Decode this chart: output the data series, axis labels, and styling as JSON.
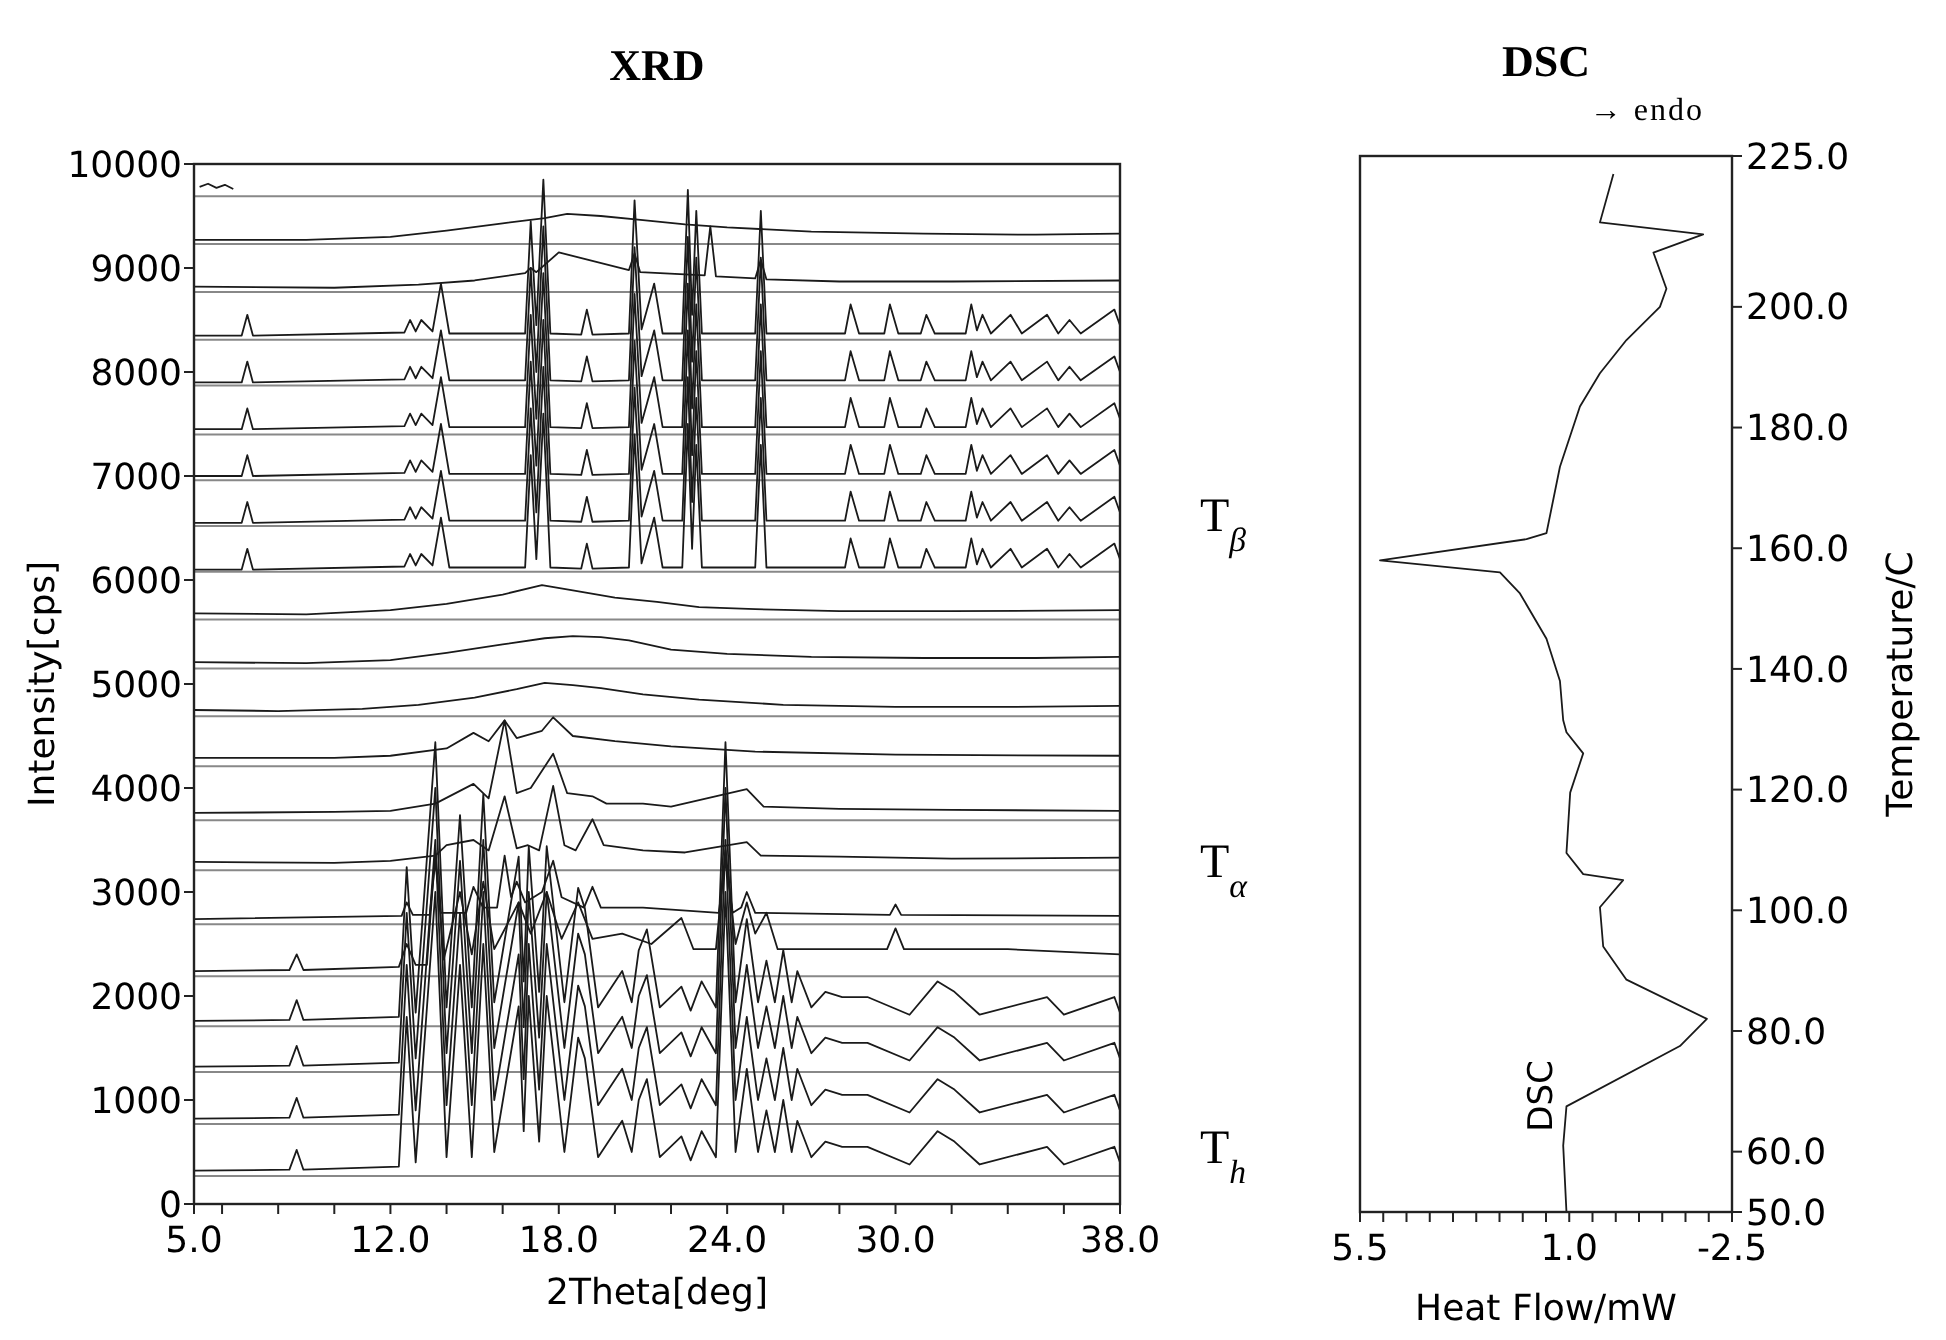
{
  "chart_data": [
    {
      "type": "line",
      "title": "XRD",
      "xlabel": "2Theta[deg]",
      "ylabel": "Intensity[cps]",
      "xlim": [
        5,
        38
      ],
      "ylim": [
        0,
        10000
      ],
      "xticks": [
        {
          "value": 5,
          "label": "5.0"
        },
        {
          "value": 6,
          "label": null
        },
        {
          "value": 8,
          "label": null
        },
        {
          "value": 10,
          "label": null
        },
        {
          "value": 12,
          "label": "12.0"
        },
        {
          "value": 14,
          "label": null
        },
        {
          "value": 16,
          "label": null
        },
        {
          "value": 18,
          "label": "18.0"
        },
        {
          "value": 20,
          "label": null
        },
        {
          "value": 22,
          "label": null
        },
        {
          "value": 24,
          "label": "24.0"
        },
        {
          "value": 26,
          "label": null
        },
        {
          "value": 28,
          "label": null
        },
        {
          "value": 30,
          "label": "30.0"
        },
        {
          "value": 32,
          "label": null
        },
        {
          "value": 34,
          "label": null
        },
        {
          "value": 36,
          "label": null
        },
        {
          "value": 38,
          "label": "38.0"
        }
      ],
      "yticks": [
        0,
        1000,
        2000,
        3000,
        4000,
        5000,
        6000,
        7000,
        8000,
        9000,
        10000
      ],
      "ref_lines": [
        {
          "axis": "y",
          "value": 270,
          "color": "#888888"
        },
        {
          "axis": "y",
          "value": 770,
          "color": "#888888"
        },
        {
          "axis": "y",
          "value": 1270,
          "color": "#888888"
        },
        {
          "axis": "y",
          "value": 1710,
          "color": "#888888"
        },
        {
          "axis": "y",
          "value": 2190,
          "color": "#888888"
        },
        {
          "axis": "y",
          "value": 2690,
          "color": "#888888"
        },
        {
          "axis": "y",
          "value": 3210,
          "color": "#888888"
        },
        {
          "axis": "y",
          "value": 3690,
          "color": "#888888"
        },
        {
          "axis": "y",
          "value": 4210,
          "color": "#888888"
        },
        {
          "axis": "y",
          "value": 4690,
          "color": "#888888"
        },
        {
          "axis": "y",
          "value": 5150,
          "color": "#888888"
        },
        {
          "axis": "y",
          "value": 5620,
          "color": "#888888"
        },
        {
          "axis": "y",
          "value": 6080,
          "color": "#888888"
        },
        {
          "axis": "y",
          "value": 6520,
          "color": "#888888"
        },
        {
          "axis": "y",
          "value": 6960,
          "color": "#888888"
        },
        {
          "axis": "y",
          "value": 7400,
          "color": "#888888"
        },
        {
          "axis": "y",
          "value": 7870,
          "color": "#888888"
        },
        {
          "axis": "y",
          "value": 8310,
          "color": "#888888"
        },
        {
          "axis": "y",
          "value": 8770,
          "color": "#888888"
        },
        {
          "axis": "y",
          "value": 9230,
          "color": "#888888"
        },
        {
          "axis": "y",
          "value": 9690,
          "color": "#888888"
        }
      ],
      "series": [
        {
          "color": "#1a1a1a",
          "x": [
            5,
            8.4,
            8.66,
            8.9,
            12.3,
            12.58,
            12.9,
            13.6,
            14.0,
            14.48,
            14.9,
            15.31,
            15.7,
            16.57,
            16.75,
            16.93,
            17.3,
            17.57,
            18.2,
            18.69,
            18.93,
            19.4,
            20.26,
            20.6,
            20.85,
            21.14,
            21.6,
            22.37,
            22.7,
            23.09,
            23.6,
            23.94,
            24.3,
            24.7,
            25.1,
            25.4,
            25.7,
            26.0,
            26.3,
            26.5,
            27.0,
            27.5,
            28.1,
            29.0,
            30.5,
            31.5,
            32.1,
            33,
            35.4,
            36,
            37.8,
            38
          ],
          "values": [
            320,
            330,
            520,
            330,
            360,
            1800,
            400,
            3000,
            450,
            2300,
            450,
            2500,
            500,
            1900,
            700,
            2000,
            600,
            2000,
            500,
            1600,
            1400,
            450,
            800,
            500,
            1000,
            1200,
            450,
            650,
            420,
            700,
            450,
            3000,
            500,
            1300,
            500,
            900,
            500,
            1000,
            500,
            800,
            450,
            600,
            550,
            550,
            380,
            700,
            600,
            380,
            550,
            380,
            550,
            400
          ]
        },
        {
          "color": "#1a1a1a",
          "x": [
            5,
            8.4,
            8.66,
            8.9,
            12.3,
            12.58,
            12.9,
            13.6,
            14.0,
            14.48,
            14.9,
            15.31,
            15.7,
            16.57,
            16.75,
            16.93,
            17.3,
            17.57,
            18.2,
            18.69,
            18.93,
            19.4,
            20.26,
            20.6,
            20.85,
            21.14,
            21.6,
            22.37,
            22.7,
            23.09,
            23.6,
            23.94,
            24.3,
            24.7,
            25.1,
            25.4,
            25.7,
            26.0,
            26.3,
            26.5,
            27.0,
            27.5,
            28.1,
            29.0,
            30.5,
            31.5,
            32.1,
            33,
            35.4,
            36,
            37.8,
            38
          ],
          "values": [
            820,
            830,
            1020,
            830,
            860,
            2300,
            900,
            3500,
            950,
            2800,
            950,
            3000,
            1000,
            2400,
            1200,
            2500,
            1100,
            2500,
            1000,
            2100,
            1900,
            950,
            1300,
            1000,
            1500,
            1700,
            950,
            1150,
            920,
            1200,
            950,
            3500,
            1000,
            1800,
            1000,
            1400,
            1000,
            1500,
            1000,
            1300,
            950,
            1100,
            1050,
            1050,
            880,
            1200,
            1100,
            880,
            1050,
            880,
            1050,
            900
          ]
        },
        {
          "color": "#1a1a1a",
          "x": [
            5,
            8.4,
            8.66,
            8.9,
            12.3,
            12.58,
            12.9,
            13.6,
            14.0,
            14.48,
            14.9,
            15.31,
            15.7,
            16.57,
            16.75,
            16.93,
            17.3,
            17.57,
            18.2,
            18.69,
            18.93,
            19.4,
            20.26,
            20.6,
            20.85,
            21.14,
            21.6,
            22.37,
            22.7,
            23.09,
            23.6,
            23.94,
            24.3,
            24.7,
            25.1,
            25.4,
            25.7,
            26.0,
            26.3,
            26.5,
            27.0,
            27.5,
            28.1,
            29.0,
            30.5,
            31.5,
            32.1,
            33,
            35.4,
            36,
            37.8,
            38
          ],
          "values": [
            1320,
            1330,
            1520,
            1330,
            1360,
            2800,
            1400,
            4000,
            1450,
            3300,
            1450,
            3500,
            1500,
            2900,
            1700,
            3000,
            1600,
            3000,
            1500,
            2600,
            2400,
            1450,
            1800,
            1500,
            2000,
            2200,
            1450,
            1650,
            1420,
            1700,
            1450,
            4000,
            1500,
            2300,
            1500,
            1900,
            1500,
            2000,
            1500,
            1800,
            1450,
            1600,
            1550,
            1550,
            1380,
            1700,
            1600,
            1380,
            1550,
            1380,
            1550,
            1400
          ]
        },
        {
          "color": "#1a1a1a",
          "x": [
            5,
            8.4,
            8.66,
            8.9,
            12.3,
            12.58,
            12.9,
            13.6,
            14.0,
            14.48,
            14.9,
            15.31,
            15.7,
            16.57,
            16.75,
            16.93,
            17.3,
            17.57,
            18.2,
            18.69,
            18.93,
            19.4,
            20.26,
            20.6,
            20.85,
            21.14,
            21.6,
            22.37,
            22.7,
            23.09,
            23.6,
            23.94,
            24.3,
            24.7,
            25.1,
            25.4,
            25.7,
            26.0,
            26.3,
            26.5,
            27.0,
            27.5,
            28.1,
            29.0,
            30.5,
            31.5,
            32.1,
            33,
            35.4,
            36,
            37.8,
            38
          ],
          "values": [
            1760,
            1770,
            1960,
            1770,
            1800,
            3240,
            1840,
            4440,
            1890,
            3740,
            1890,
            3940,
            1940,
            3340,
            2140,
            3440,
            2040,
            3440,
            1940,
            3040,
            2840,
            1890,
            2240,
            1940,
            2440,
            2640,
            1890,
            2090,
            1860,
            2140,
            1890,
            4440,
            1940,
            2740,
            1940,
            2340,
            1940,
            2440,
            1940,
            2240,
            1890,
            2040,
            1990,
            1990,
            1820,
            2140,
            2040,
            1820,
            1990,
            1820,
            1990,
            1840
          ]
        },
        {
          "color": "#1a1a1a",
          "x": [
            5,
            8.4,
            8.66,
            8.9,
            12.3,
            12.58,
            12.9,
            13.3,
            13.6,
            13.9,
            14.48,
            14.9,
            15.31,
            15.7,
            16.57,
            17.0,
            17.57,
            18.1,
            18.69,
            19.2,
            20.26,
            21.3,
            22.37,
            22.8,
            23.6,
            23.94,
            24.3,
            24.7,
            25.0,
            25.4,
            25.8,
            29.7,
            30.0,
            30.3,
            34,
            38
          ],
          "values": [
            2240,
            2250,
            2400,
            2250,
            2280,
            2500,
            2300,
            2300,
            3400,
            2350,
            3000,
            2400,
            3100,
            2450,
            2900,
            2600,
            3000,
            2550,
            2900,
            2550,
            2600,
            2500,
            2750,
            2450,
            2450,
            3400,
            2500,
            2900,
            2600,
            2800,
            2450,
            2450,
            2650,
            2450,
            2450,
            2400
          ]
        },
        {
          "color": "#1a1a1a",
          "x": [
            5,
            12.4,
            12.58,
            12.8,
            13.4,
            13.6,
            13.8,
            14.7,
            14.96,
            15.3,
            15.8,
            16.07,
            16.3,
            16.5,
            16.8,
            17.4,
            17.8,
            18.1,
            18.9,
            19.2,
            19.5,
            21,
            23.7,
            23.94,
            24.2,
            24.5,
            24.7,
            25.0,
            29.8,
            30,
            30.2,
            38
          ],
          "values": [
            2740,
            2770,
            2900,
            2780,
            2780,
            3300,
            2800,
            2800,
            3050,
            2850,
            2850,
            3350,
            2950,
            3100,
            2900,
            3000,
            3300,
            2950,
            2850,
            3050,
            2850,
            2850,
            2800,
            3300,
            2800,
            2850,
            3000,
            2800,
            2780,
            2880,
            2780,
            2770
          ]
        },
        {
          "color": "#1a1a1a",
          "x": [
            5,
            10,
            12,
            13.6,
            14.0,
            14.96,
            15.5,
            16.07,
            16.5,
            16.9,
            17.3,
            17.8,
            18.2,
            18.6,
            19.2,
            19.6,
            21,
            22.5,
            24.7,
            25.2,
            28,
            32,
            38
          ],
          "values": [
            3290,
            3280,
            3300,
            3350,
            3450,
            3500,
            3400,
            3920,
            3420,
            3450,
            3400,
            4020,
            3450,
            3400,
            3700,
            3450,
            3400,
            3380,
            3480,
            3350,
            3340,
            3320,
            3330
          ]
        },
        {
          "color": "#1a1a1a",
          "x": [
            5,
            10,
            12,
            13.6,
            14.96,
            15.5,
            16.07,
            16.5,
            17.0,
            17.8,
            18.3,
            19.2,
            19.7,
            21,
            22,
            24.7,
            25.3,
            28,
            32,
            38
          ],
          "values": [
            3760,
            3770,
            3780,
            3850,
            4040,
            3900,
            4650,
            3950,
            4000,
            4330,
            3950,
            3920,
            3850,
            3850,
            3820,
            3990,
            3820,
            3800,
            3790,
            3780
          ]
        },
        {
          "color": "#1a1a1a",
          "x": [
            5,
            10,
            12,
            14,
            14.96,
            15.5,
            16.07,
            16.5,
            17.4,
            17.8,
            18.5,
            20,
            22,
            25,
            30,
            38
          ],
          "values": [
            4290,
            4290,
            4310,
            4380,
            4530,
            4450,
            4650,
            4480,
            4550,
            4680,
            4500,
            4450,
            4400,
            4350,
            4320,
            4310
          ]
        },
        {
          "color": "#1a1a1a",
          "x": [
            5,
            8,
            11,
            13,
            15,
            16.5,
            17.5,
            18.5,
            19.5,
            21,
            23,
            26,
            30,
            34,
            38
          ],
          "values": [
            4750,
            4740,
            4760,
            4800,
            4870,
            4950,
            5010,
            4990,
            4960,
            4900,
            4850,
            4800,
            4780,
            4780,
            4790
          ]
        },
        {
          "color": "#1a1a1a",
          "x": [
            5,
            9,
            12,
            14,
            16,
            17.5,
            18.5,
            19.5,
            20.5,
            22,
            24,
            27,
            31,
            35,
            38
          ],
          "values": [
            5210,
            5200,
            5230,
            5300,
            5380,
            5440,
            5460,
            5450,
            5420,
            5330,
            5290,
            5260,
            5250,
            5250,
            5260
          ]
        },
        {
          "color": "#1a1a1a",
          "x": [
            5,
            9,
            12,
            14,
            16,
            17.4,
            18.5,
            20,
            21.5,
            23,
            25,
            28,
            32,
            38
          ],
          "values": [
            5680,
            5670,
            5710,
            5770,
            5860,
            5950,
            5900,
            5830,
            5790,
            5740,
            5720,
            5700,
            5700,
            5710
          ]
        },
        {
          "color": "#1a1a1a",
          "x": [
            5,
            6.7,
            6.9,
            7.1,
            12.5,
            12.7,
            12.9,
            13.1,
            13.5,
            13.8,
            14.1,
            16.8,
            17.0,
            17.2,
            17.45,
            17.7,
            18.8,
            19.0,
            19.2,
            20.5,
            20.7,
            20.95,
            21.4,
            21.7,
            22.4,
            22.6,
            22.75,
            22.9,
            23.1,
            25.0,
            25.2,
            25.4,
            28.2,
            28.4,
            28.7,
            29.6,
            29.8,
            30.1,
            30.9,
            31.1,
            31.4,
            32.5,
            32.7,
            32.9,
            33.1,
            33.4,
            34.1,
            34.5,
            35.4,
            35.8,
            36.2,
            36.6,
            37.8,
            38
          ],
          "values": [
            6100,
            6100,
            6300,
            6100,
            6130,
            6250,
            6140,
            6250,
            6140,
            6600,
            6120,
            6120,
            7200,
            6200,
            7600,
            6120,
            6110,
            6350,
            6110,
            6120,
            7400,
            6160,
            6600,
            6120,
            6120,
            7500,
            6300,
            7300,
            6120,
            6120,
            7300,
            6120,
            6120,
            6400,
            6120,
            6120,
            6400,
            6120,
            6120,
            6300,
            6120,
            6120,
            6400,
            6150,
            6300,
            6120,
            6300,
            6120,
            6300,
            6120,
            6250,
            6120,
            6350,
            6200
          ]
        },
        {
          "color": "#1a1a1a",
          "x": [
            5,
            6.7,
            6.9,
            7.1,
            12.5,
            12.7,
            12.9,
            13.1,
            13.5,
            13.8,
            14.1,
            16.8,
            17.0,
            17.2,
            17.45,
            17.7,
            18.8,
            19.0,
            19.2,
            20.5,
            20.7,
            20.95,
            21.4,
            21.7,
            22.4,
            22.6,
            22.75,
            22.9,
            23.1,
            25.0,
            25.2,
            25.4,
            28.2,
            28.4,
            28.7,
            29.6,
            29.8,
            30.1,
            30.9,
            31.1,
            31.4,
            32.5,
            32.7,
            32.9,
            33.1,
            33.4,
            34.1,
            34.5,
            35.4,
            35.8,
            36.2,
            36.6,
            37.8,
            38
          ],
          "values": [
            6550,
            6550,
            6750,
            6550,
            6580,
            6700,
            6590,
            6700,
            6590,
            7050,
            6570,
            6570,
            7650,
            6650,
            8050,
            6570,
            6560,
            6800,
            6560,
            6570,
            7850,
            6610,
            7050,
            6570,
            6570,
            7950,
            6750,
            7750,
            6570,
            6570,
            7750,
            6570,
            6570,
            6850,
            6570,
            6570,
            6850,
            6570,
            6570,
            6750,
            6570,
            6570,
            6850,
            6600,
            6750,
            6570,
            6750,
            6570,
            6750,
            6570,
            6700,
            6570,
            6800,
            6650
          ]
        },
        {
          "color": "#1a1a1a",
          "x": [
            5,
            6.7,
            6.9,
            7.1,
            12.5,
            12.7,
            12.9,
            13.1,
            13.5,
            13.8,
            14.1,
            16.8,
            17.0,
            17.2,
            17.45,
            17.7,
            18.8,
            19.0,
            19.2,
            20.5,
            20.7,
            20.95,
            21.4,
            21.7,
            22.4,
            22.6,
            22.75,
            22.9,
            23.1,
            25.0,
            25.2,
            25.4,
            28.2,
            28.4,
            28.7,
            29.6,
            29.8,
            30.1,
            30.9,
            31.1,
            31.4,
            32.5,
            32.7,
            32.9,
            33.1,
            33.4,
            34.1,
            34.5,
            35.4,
            35.8,
            36.2,
            36.6,
            37.8,
            38
          ],
          "values": [
            7000,
            7000,
            7200,
            7000,
            7030,
            7150,
            7040,
            7150,
            7040,
            7500,
            7020,
            7020,
            8100,
            7100,
            8500,
            7020,
            7010,
            7250,
            7010,
            7020,
            8300,
            7060,
            7500,
            7020,
            7020,
            8400,
            7200,
            8200,
            7020,
            7020,
            8200,
            7020,
            7020,
            7300,
            7020,
            7020,
            7300,
            7020,
            7020,
            7200,
            7020,
            7020,
            7300,
            7050,
            7200,
            7020,
            7200,
            7020,
            7200,
            7020,
            7150,
            7020,
            7250,
            7100
          ]
        },
        {
          "color": "#1a1a1a",
          "x": [
            5,
            6.7,
            6.9,
            7.1,
            12.5,
            12.7,
            12.9,
            13.1,
            13.5,
            13.8,
            14.1,
            16.8,
            17.0,
            17.2,
            17.45,
            17.7,
            18.8,
            19.0,
            19.2,
            20.5,
            20.7,
            20.95,
            21.4,
            21.7,
            22.4,
            22.6,
            22.75,
            22.9,
            23.1,
            25.0,
            25.2,
            25.4,
            28.2,
            28.4,
            28.7,
            29.6,
            29.8,
            30.1,
            30.9,
            31.1,
            31.4,
            32.5,
            32.7,
            32.9,
            33.1,
            33.4,
            34.1,
            34.5,
            35.4,
            35.8,
            36.2,
            36.6,
            37.8,
            38
          ],
          "values": [
            7450,
            7450,
            7650,
            7450,
            7480,
            7600,
            7490,
            7600,
            7490,
            7950,
            7470,
            7470,
            8550,
            7550,
            8950,
            7470,
            7460,
            7700,
            7460,
            7470,
            8750,
            7510,
            7950,
            7470,
            7470,
            8850,
            7650,
            8650,
            7470,
            7470,
            8650,
            7470,
            7470,
            7750,
            7470,
            7470,
            7750,
            7470,
            7470,
            7650,
            7470,
            7470,
            7750,
            7500,
            7650,
            7470,
            7650,
            7470,
            7650,
            7470,
            7600,
            7470,
            7700,
            7550
          ]
        },
        {
          "color": "#1a1a1a",
          "x": [
            5,
            6.7,
            6.9,
            7.1,
            12.5,
            12.7,
            12.9,
            13.1,
            13.5,
            13.8,
            14.1,
            16.8,
            17.0,
            17.2,
            17.45,
            17.7,
            18.8,
            19.0,
            19.2,
            20.5,
            20.7,
            20.95,
            21.4,
            21.7,
            22.4,
            22.6,
            22.75,
            22.9,
            23.1,
            25.0,
            25.2,
            25.4,
            28.2,
            28.4,
            28.7,
            29.6,
            29.8,
            30.1,
            30.9,
            31.1,
            31.4,
            32.5,
            32.7,
            32.9,
            33.1,
            33.4,
            34.1,
            34.5,
            35.4,
            35.8,
            36.2,
            36.6,
            37.8,
            38
          ],
          "values": [
            7900,
            7900,
            8100,
            7900,
            7930,
            8050,
            7940,
            8050,
            7940,
            8400,
            7920,
            7920,
            9000,
            8000,
            9400,
            7920,
            7910,
            8150,
            7910,
            7920,
            9200,
            7960,
            8400,
            7920,
            7920,
            9300,
            8100,
            9100,
            7920,
            7920,
            9100,
            7920,
            7920,
            8200,
            7920,
            7920,
            8200,
            7920,
            7920,
            8100,
            7920,
            7920,
            8200,
            7950,
            8100,
            7920,
            8100,
            7920,
            8100,
            7920,
            8050,
            7920,
            8150,
            8000
          ]
        },
        {
          "color": "#1a1a1a",
          "x": [
            5,
            6.7,
            6.9,
            7.1,
            12.5,
            12.7,
            12.9,
            13.1,
            13.5,
            13.8,
            14.1,
            16.8,
            17.0,
            17.2,
            17.45,
            17.7,
            18.8,
            19.0,
            19.2,
            20.5,
            20.7,
            20.95,
            21.4,
            21.7,
            22.4,
            22.6,
            22.75,
            22.9,
            23.1,
            25.0,
            25.2,
            25.4,
            28.2,
            28.4,
            28.7,
            29.6,
            29.8,
            30.1,
            30.9,
            31.1,
            31.4,
            32.5,
            32.7,
            32.9,
            33.1,
            33.4,
            34.1,
            34.5,
            35.4,
            35.8,
            36.2,
            36.6,
            37.8,
            38
          ],
          "values": [
            8350,
            8350,
            8550,
            8350,
            8380,
            8500,
            8390,
            8500,
            8390,
            8850,
            8370,
            8370,
            9450,
            8450,
            9850,
            8370,
            8360,
            8600,
            8360,
            8370,
            9650,
            8410,
            8850,
            8370,
            8370,
            9750,
            8550,
            9550,
            8370,
            8370,
            9550,
            8370,
            8370,
            8650,
            8370,
            8370,
            8650,
            8370,
            8370,
            8550,
            8370,
            8370,
            8650,
            8400,
            8550,
            8370,
            8550,
            8370,
            8550,
            8370,
            8500,
            8370,
            8600,
            8450
          ]
        },
        {
          "color": "#1a1a1a",
          "x": [
            5,
            10,
            13,
            15,
            16.8,
            17.0,
            17.2,
            18,
            20.5,
            20.7,
            20.9,
            23.2,
            23.4,
            23.6,
            25.0,
            25.2,
            25.4,
            28,
            32,
            38
          ],
          "values": [
            8820,
            8810,
            8840,
            8880,
            8950,
            9000,
            8960,
            9150,
            8980,
            9140,
            8960,
            8930,
            9400,
            8920,
            8900,
            9080,
            8890,
            8870,
            8870,
            8880
          ]
        },
        {
          "color": "#1a1a1a",
          "x": [
            5,
            9,
            12,
            14,
            16,
            17.5,
            18.3,
            19.5,
            21,
            22.5,
            24,
            27,
            31,
            35,
            38
          ],
          "values": [
            9270,
            9270,
            9300,
            9360,
            9430,
            9480,
            9520,
            9500,
            9460,
            9420,
            9390,
            9350,
            9330,
            9320,
            9330
          ]
        },
        {
          "color": "#1a1a1a",
          "x": [
            5.2,
            5.5,
            5.8,
            6.1,
            6.4
          ],
          "values": [
            9780,
            9810,
            9770,
            9800,
            9760
          ]
        }
      ]
    },
    {
      "type": "line",
      "title": "DSC",
      "xlabel": "Heat Flow/mW",
      "ylabel": "Temperature/C",
      "xlim": [
        5.5,
        -2.5
      ],
      "ylim": [
        50,
        225
      ],
      "xticks": [
        {
          "value": 5.5,
          "label": "5.5"
        },
        {
          "value": 5,
          "label": null
        },
        {
          "value": 4.5,
          "label": null
        },
        {
          "value": 4,
          "label": null
        },
        {
          "value": 3.5,
          "label": null
        },
        {
          "value": 3,
          "label": null
        },
        {
          "value": 2.5,
          "label": null
        },
        {
          "value": 2,
          "label": null
        },
        {
          "value": 1.5,
          "label": null
        },
        {
          "value": 1,
          "label": "1.0"
        },
        {
          "value": 0.5,
          "label": null
        },
        {
          "value": 0,
          "label": null
        },
        {
          "value": -0.5,
          "label": null
        },
        {
          "value": -1,
          "label": null
        },
        {
          "value": -1.5,
          "label": null
        },
        {
          "value": -2,
          "label": null
        },
        {
          "value": -2.5,
          "label": "-2.5"
        }
      ],
      "yticks": [
        {
          "value": 50,
          "label": "50.0"
        },
        {
          "value": 60,
          "label": "60.0"
        },
        {
          "value": 80,
          "label": "80.0"
        },
        {
          "value": 100,
          "label": "100.0"
        },
        {
          "value": 120,
          "label": "120.0"
        },
        {
          "value": 140,
          "label": "140.0"
        },
        {
          "value": 160,
          "label": "160.0"
        },
        {
          "value": 180,
          "label": "180.0"
        },
        {
          "value": 200,
          "label": "200.0"
        },
        {
          "value": 225,
          "label": "225.0"
        }
      ],
      "annotations": [
        "→ endo",
        "T$_{β}$",
        "T$_{α}$",
        "T$_{h}$",
        "DSC"
      ],
      "series": [
        {
          "color": "#1a1a1a",
          "x": [
            0.05,
            0.34,
            -1.88,
            -0.81,
            -1.09,
            -0.95,
            -0.23,
            0.34,
            0.77,
            1.2,
            1.49,
            1.92,
            5.07,
            2.49,
            2.06,
            1.49,
            1.2,
            1.13,
            1.06,
            0.7,
            0.98,
            1.06,
            0.7,
            -0.16,
            0.34,
            0.27,
            -0.23,
            -1.96,
            -1.38,
            1.06,
            1.13,
            1.06
          ],
          "values": [
            222,
            214,
            212,
            209,
            203,
            200,
            194.5,
            189,
            183.5,
            173.5,
            162.5,
            161.5,
            158,
            156,
            152.5,
            145,
            138,
            131.5,
            129.5,
            126,
            119.5,
            109.5,
            106,
            105,
            100.5,
            94,
            88.5,
            82,
            77.5,
            67.5,
            61,
            50
          ]
        }
      ]
    }
  ]
}
